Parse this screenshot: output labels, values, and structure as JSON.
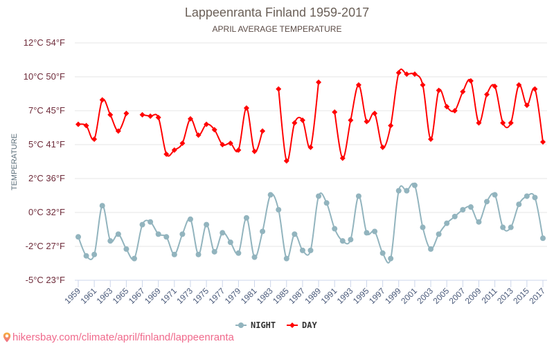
{
  "chart_data": {
    "type": "line",
    "title": "Lappeenranta Finland 1959-2017",
    "subtitle": "APRIL AVERAGE TEMPERATURE",
    "xlabel": "",
    "ylabel": "TEMPERATURE",
    "ylim": [
      -5,
      12.5
    ],
    "yticks": [
      {
        "value": 12.5,
        "label": "12°C 54°F"
      },
      {
        "value": 10,
        "label": "10°C 50°F"
      },
      {
        "value": 7.5,
        "label": "7°C 45°F"
      },
      {
        "value": 5,
        "label": "5°C 41°F"
      },
      {
        "value": 2.5,
        "label": "2°C 36°F"
      },
      {
        "value": 0,
        "label": "0°C 32°F"
      },
      {
        "value": -2.5,
        "label": "-2°C 27°F"
      },
      {
        "value": -5,
        "label": "-5°C 23°F"
      }
    ],
    "grid": true,
    "legend_position": "bottom-center",
    "x": [
      1959,
      1960,
      1961,
      1962,
      1963,
      1964,
      1965,
      1966,
      1967,
      1968,
      1969,
      1970,
      1971,
      1972,
      1973,
      1974,
      1975,
      1976,
      1977,
      1978,
      1979,
      1980,
      1981,
      1982,
      1983,
      1984,
      1985,
      1986,
      1987,
      1988,
      1989,
      1990,
      1991,
      1992,
      1993,
      1994,
      1995,
      1996,
      1997,
      1998,
      1999,
      2000,
      2001,
      2002,
      2003,
      2004,
      2005,
      2006,
      2007,
      2008,
      2009,
      2010,
      2011,
      2012,
      2013,
      2014,
      2015,
      2016,
      2017
    ],
    "xtick_labels": [
      "1959",
      "1961",
      "1963",
      "1965",
      "1967",
      "1969",
      "1971",
      "1973",
      "1975",
      "1977",
      "1979",
      "1981",
      "1983",
      "1985",
      "1987",
      "1989",
      "1991",
      "1993",
      "1995",
      "1997",
      "1999",
      "2001",
      "2003",
      "2005",
      "2007",
      "2009",
      "2011",
      "2013",
      "2015",
      "2017"
    ],
    "series": [
      {
        "name": "NIGHT",
        "color": "#92b4be",
        "marker": "circle",
        "values": [
          -1.8,
          -3.2,
          -3.1,
          0.5,
          -2.1,
          -1.6,
          -2.7,
          -3.4,
          -0.9,
          -0.7,
          -1.6,
          -1.8,
          -3.1,
          -1.6,
          -0.5,
          -3.1,
          -0.9,
          -2.9,
          -1.5,
          -2.2,
          -3.0,
          -0.4,
          -3.3,
          -1.4,
          1.3,
          0.2,
          -3.4,
          -1.6,
          -2.8,
          -2.8,
          1.2,
          0.7,
          -1.2,
          -2.1,
          -2.0,
          1.2,
          -1.5,
          -1.4,
          -3.0,
          -3.4,
          1.6,
          1.6,
          2.0,
          -1.1,
          -2.7,
          -1.6,
          -0.8,
          -0.3,
          0.2,
          0.4,
          -0.7,
          0.8,
          1.3,
          -1.1,
          -1.1,
          0.6,
          1.2,
          1.1,
          -1.9
        ]
      },
      {
        "name": "DAY",
        "color": "#ff0000",
        "marker": "diamond",
        "values": [
          6.5,
          6.4,
          5.4,
          8.3,
          7.2,
          6.0,
          7.3,
          null,
          7.2,
          7.1,
          7.0,
          4.3,
          4.6,
          5.1,
          6.9,
          5.7,
          6.5,
          6.1,
          5.0,
          5.1,
          4.6,
          7.7,
          4.5,
          6.0,
          null,
          9.1,
          3.8,
          6.6,
          6.8,
          4.8,
          9.6,
          null,
          7.4,
          4.0,
          6.8,
          9.4,
          6.7,
          7.3,
          4.8,
          6.4,
          10.3,
          10.2,
          10.2,
          9.4,
          5.4,
          9.0,
          7.8,
          7.5,
          8.9,
          9.7,
          6.6,
          8.7,
          9.3,
          6.6,
          6.6,
          9.4,
          7.9,
          9.1,
          5.2
        ]
      }
    ]
  },
  "footer": {
    "icon": "map-pin-icon",
    "text": "hikersbay.com/climate/april/finland/lappeenranta",
    "color": "#f06a8c"
  }
}
